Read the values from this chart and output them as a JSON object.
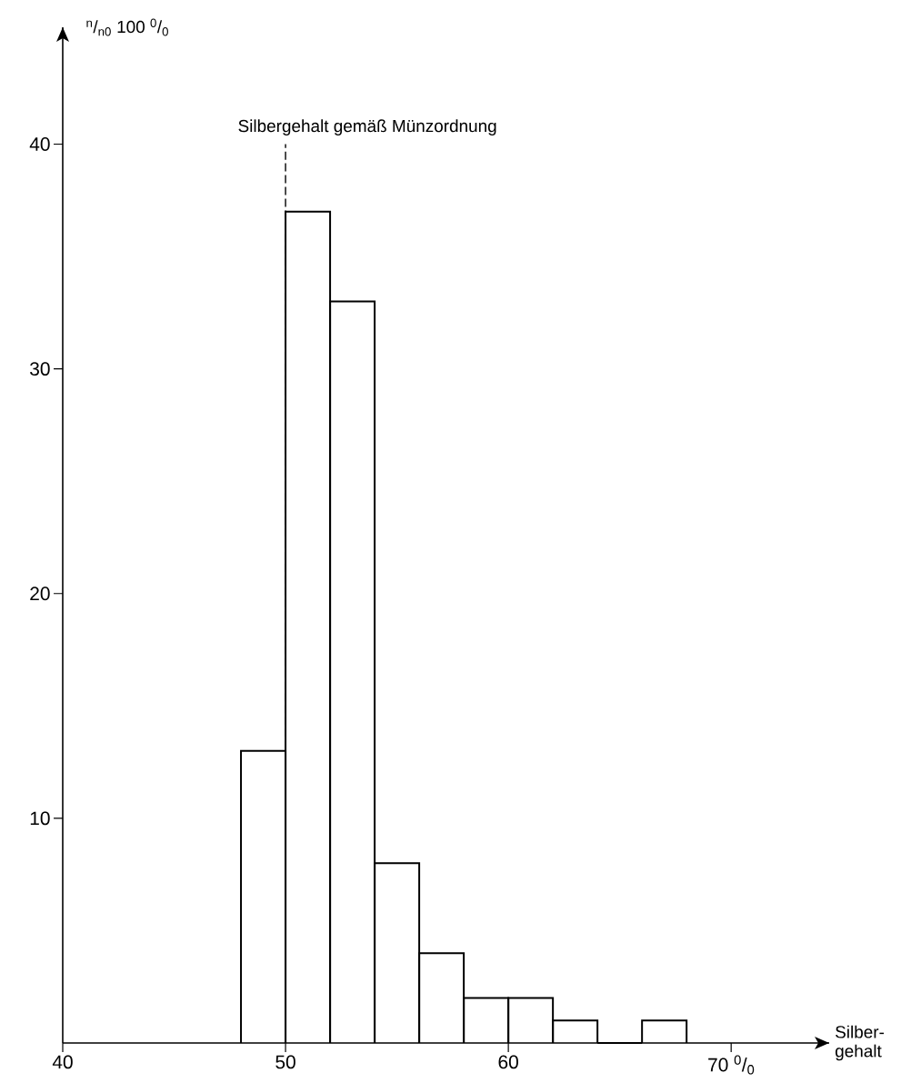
{
  "chart_data": {
    "type": "histogram",
    "bins": [
      48,
      50,
      52,
      54,
      56,
      58,
      60,
      62,
      64,
      66,
      68
    ],
    "values": [
      13,
      37,
      33,
      8,
      4,
      2,
      2,
      1,
      0,
      1
    ],
    "color": "#000000",
    "xlabel": "Silber-\ngehalt",
    "ylabel": "$^{n}$/$_{n0}$ 100 $^{0}$/$_{0}$",
    "xlim": [
      40,
      74.4
    ],
    "ylim": [
      0,
      45.2
    ],
    "xticks": [
      40,
      50,
      60,
      {
        "value": 70,
        "label": "70 $^{0}$/$_{0}$"
      }
    ],
    "yticks": [
      10,
      20,
      30,
      40
    ],
    "ref_lines": [
      {
        "axis": "x",
        "value": 50,
        "label": "Silbergehalt gemäß Münzordnung",
        "line_style": "dashed"
      }
    ]
  }
}
